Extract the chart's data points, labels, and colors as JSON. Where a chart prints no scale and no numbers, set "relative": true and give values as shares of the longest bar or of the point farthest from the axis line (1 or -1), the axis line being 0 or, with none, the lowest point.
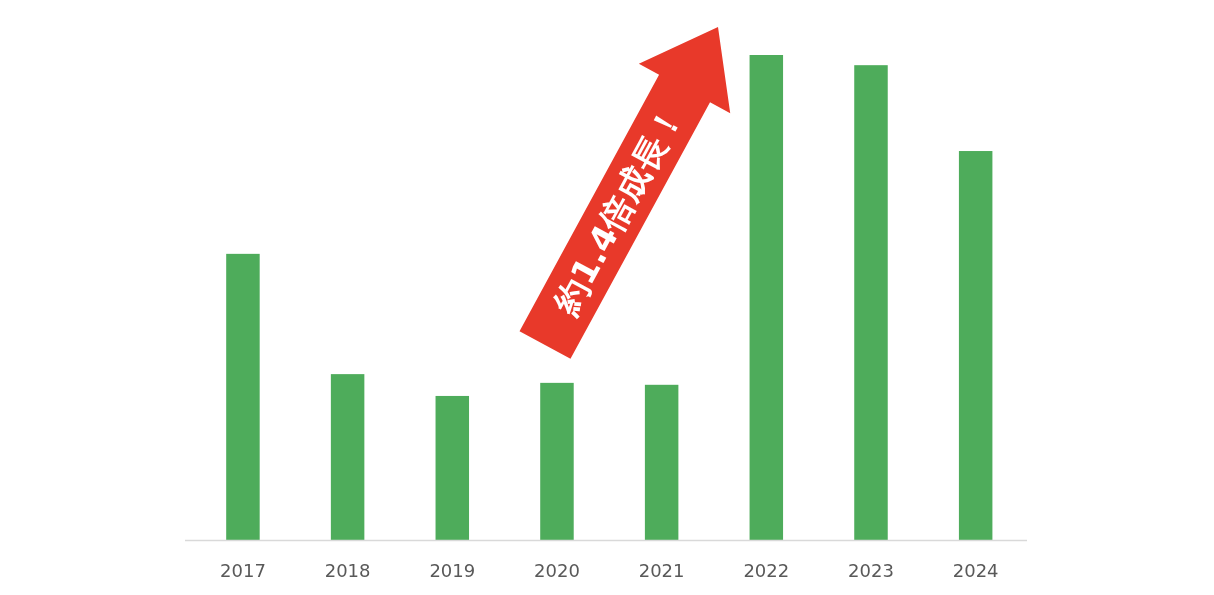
{
  "chart_data": {
    "type": "bar",
    "relative": true,
    "categories": [
      "2017",
      "2018",
      "2019",
      "2020",
      "2021",
      "2022",
      "2023",
      "2024"
    ],
    "values": [
      0.59,
      0.342,
      0.297,
      0.324,
      0.32,
      1,
      0.979,
      0.802
    ],
    "color": "#4eac5b",
    "annotations": [
      "約1.4倍成長！"
    ]
  }
}
